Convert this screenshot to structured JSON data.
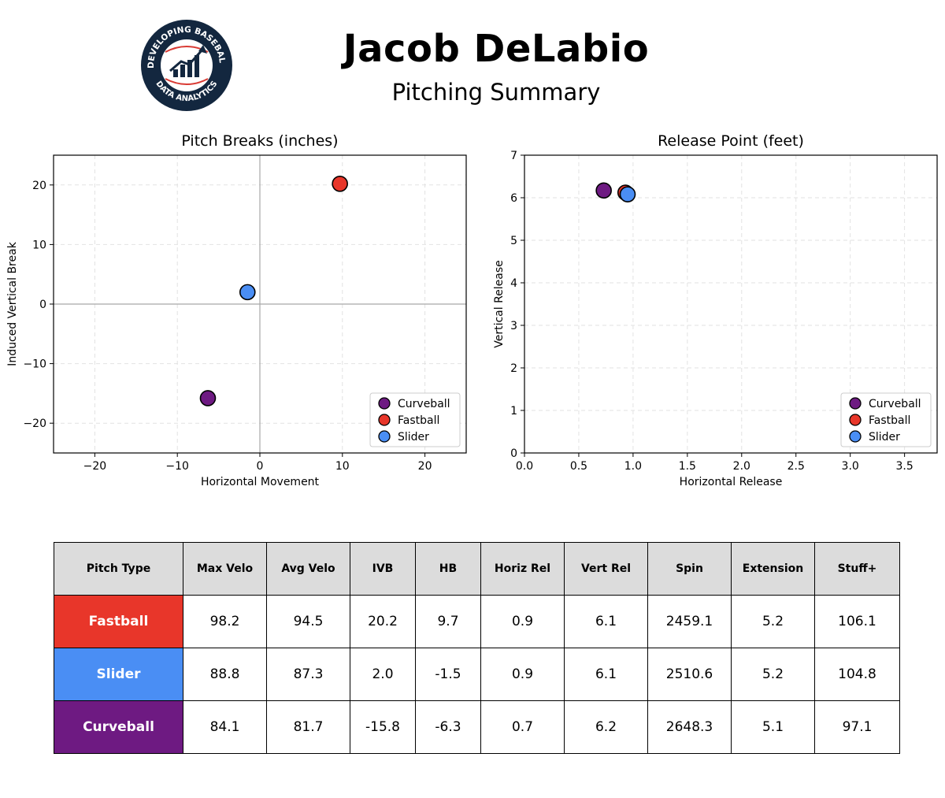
{
  "header": {
    "title": "Jacob DeLabio",
    "subtitle": "Pitching Summary",
    "logo": {
      "top_text": "DEVELOPING BASEBALL",
      "bottom_text": "DATA ANALYTICS",
      "ring_color": "#13273f",
      "seam_color": "#d93a33"
    }
  },
  "colors": {
    "Fastball": "#e8362a",
    "Slider": "#4a8ef4",
    "Curveball": "#6e1a82"
  },
  "chart_data": [
    {
      "type": "scatter",
      "title": "Pitch Breaks (inches)",
      "xlabel": "Horizontal Movement",
      "ylabel": "Induced Vertical Break",
      "xlim": [
        -25,
        25
      ],
      "ylim": [
        -25,
        25
      ],
      "xticks": [
        -20,
        -10,
        0,
        10,
        20
      ],
      "yticks": [
        -20,
        -10,
        0,
        10,
        20
      ],
      "xtick_labels": [
        "−20",
        "−10",
        "0",
        "10",
        "20"
      ],
      "ytick_labels": [
        "−20",
        "−10",
        "0",
        "10",
        "20"
      ],
      "grid": true,
      "zero_lines": true,
      "legend": "lower-right",
      "series": [
        {
          "name": "Curveball",
          "x": [
            -6.3
          ],
          "y": [
            -15.8
          ]
        },
        {
          "name": "Fastball",
          "x": [
            9.7
          ],
          "y": [
            20.2
          ]
        },
        {
          "name": "Slider",
          "x": [
            -1.5
          ],
          "y": [
            2.0
          ]
        }
      ]
    },
    {
      "type": "scatter",
      "title": "Release Point (feet)",
      "xlabel": "Horizontal Release",
      "ylabel": "Vertical Release",
      "xlim": [
        0,
        3.8
      ],
      "ylim": [
        0,
        7
      ],
      "xticks": [
        0,
        0.5,
        1,
        1.5,
        2,
        2.5,
        3,
        3.5
      ],
      "yticks": [
        0,
        1,
        2,
        3,
        4,
        5,
        6,
        7
      ],
      "xtick_labels": [
        "0.0",
        "0.5",
        "1.0",
        "1.5",
        "2.0",
        "2.5",
        "3.0",
        "3.5"
      ],
      "ytick_labels": [
        "0",
        "1",
        "2",
        "3",
        "4",
        "5",
        "6",
        "7"
      ],
      "grid": true,
      "zero_lines": false,
      "legend": "lower-right",
      "series": [
        {
          "name": "Curveball",
          "x": [
            0.73
          ],
          "y": [
            6.17
          ]
        },
        {
          "name": "Fastball",
          "x": [
            0.93
          ],
          "y": [
            6.12
          ]
        },
        {
          "name": "Slider",
          "x": [
            0.95
          ],
          "y": [
            6.08
          ]
        }
      ]
    },
    {
      "type": "table",
      "columns": [
        "Pitch Type",
        "Max Velo",
        "Avg Velo",
        "IVB",
        "HB",
        "Horiz Rel",
        "Vert Rel",
        "Spin",
        "Extension",
        "Stuff+"
      ],
      "rows": [
        [
          "Fastball",
          "98.2",
          "94.5",
          "20.2",
          "9.7",
          "0.9",
          "6.1",
          "2459.1",
          "5.2",
          "106.1"
        ],
        [
          "Slider",
          "88.8",
          "87.3",
          "2.0",
          "-1.5",
          "0.9",
          "6.1",
          "2510.6",
          "5.2",
          "104.8"
        ],
        [
          "Curveball",
          "84.1",
          "81.7",
          "-15.8",
          "-6.3",
          "0.7",
          "6.2",
          "2648.3",
          "5.1",
          "97.1"
        ]
      ]
    }
  ]
}
